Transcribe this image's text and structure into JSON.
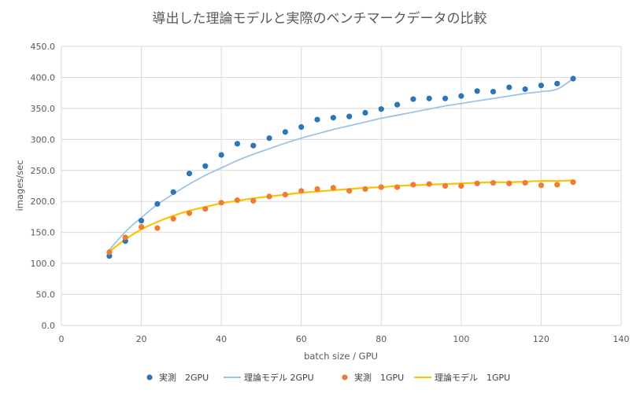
{
  "chart_data": {
    "type": "scatter",
    "title": "導出した理論モデルと実際のベンチマークデータの比較",
    "xlabel": "batch size / GPU",
    "ylabel": "images/sec",
    "xlim": [
      0,
      140
    ],
    "ylim": [
      0,
      450
    ],
    "x_ticks": [
      "0",
      "20",
      "40",
      "60",
      "80",
      "100",
      "120",
      "140"
    ],
    "y_ticks": [
      "0.0",
      "50.0",
      "100.0",
      "150.0",
      "200.0",
      "250.0",
      "300.0",
      "350.0",
      "400.0",
      "450.0"
    ],
    "grid": true,
    "legend_position": "bottom",
    "series": [
      {
        "name": "実測　2GPU",
        "kind": "scatter",
        "color": "#2E75B6",
        "x": [
          12,
          16,
          20,
          24,
          28,
          32,
          36,
          40,
          44,
          48,
          52,
          56,
          60,
          64,
          68,
          72,
          76,
          80,
          84,
          88,
          92,
          96,
          100,
          104,
          108,
          112,
          116,
          120,
          124,
          128
        ],
        "y": [
          112,
          136,
          169,
          196,
          215,
          245,
          257,
          275,
          293,
          290,
          302,
          312,
          320,
          332,
          335,
          337,
          343,
          349,
          356,
          365,
          366,
          366,
          370,
          378,
          377,
          384,
          381,
          387,
          390,
          398
        ]
      },
      {
        "name": "理論モデル 2GPU",
        "kind": "line",
        "color": "#9DC3E6",
        "x": [
          12,
          16,
          20,
          24,
          28,
          32,
          36,
          40,
          44,
          48,
          52,
          56,
          60,
          64,
          68,
          72,
          76,
          80,
          84,
          88,
          92,
          96,
          100,
          104,
          108,
          112,
          116,
          120,
          124,
          128
        ],
        "y": [
          122,
          151,
          174,
          195,
          212,
          228,
          242,
          254,
          266,
          276,
          285,
          294,
          302,
          309,
          316,
          322,
          328,
          334,
          339,
          344,
          349,
          354,
          358,
          362,
          366,
          370,
          374,
          377,
          381,
          398
        ]
      },
      {
        "name": "実測　1GPU",
        "kind": "scatter",
        "color": "#ED7D31",
        "x": [
          12,
          16,
          20,
          24,
          28,
          32,
          36,
          40,
          44,
          48,
          52,
          56,
          60,
          64,
          68,
          72,
          76,
          80,
          84,
          88,
          92,
          96,
          100,
          104,
          108,
          112,
          116,
          120,
          124,
          128
        ],
        "y": [
          118,
          142,
          159,
          157,
          172,
          181,
          188,
          198,
          202,
          201,
          208,
          211,
          217,
          220,
          222,
          217,
          220,
          223,
          223,
          227,
          228,
          225,
          225,
          229,
          230,
          229,
          230,
          226,
          227,
          231
        ]
      },
      {
        "name": "理論モデル　1GPU",
        "kind": "line",
        "color": "#FFC000",
        "x": [
          12,
          16,
          20,
          24,
          28,
          32,
          36,
          40,
          44,
          48,
          52,
          56,
          60,
          64,
          68,
          72,
          76,
          80,
          84,
          88,
          92,
          96,
          100,
          104,
          108,
          112,
          116,
          120,
          124,
          128
        ],
        "y": [
          119,
          139,
          155,
          167,
          177,
          185,
          191,
          197,
          201,
          205,
          208,
          211,
          214,
          216,
          218,
          220,
          222,
          223,
          225,
          226,
          227,
          228,
          229,
          230,
          231,
          231,
          232,
          233,
          233,
          234
        ]
      }
    ]
  }
}
